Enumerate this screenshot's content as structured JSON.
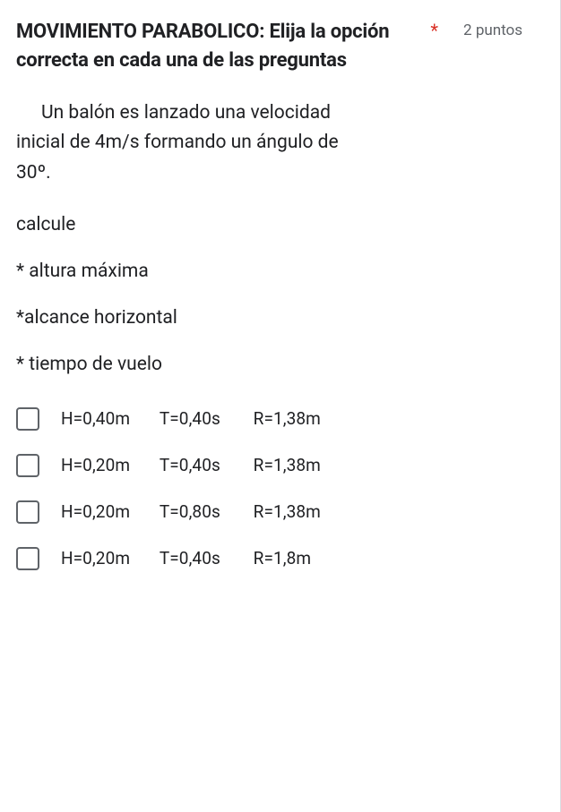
{
  "title": " MOVIMIENTO PARABOLICO: Elija la opción correcta en cada una de las preguntas",
  "required_marker": "*",
  "points_label": "2 puntos",
  "problem": {
    "line": "Un balón es lanzado una velocidad inicial de 4m/s formando un ángulo de 30º."
  },
  "calcule_label": "calcule",
  "bullets": {
    "a": "* altura máxima",
    "b": "*alcance horizontal",
    "c": "* tiempo de vuelo"
  },
  "options": [
    {
      "h": "H=0,40m",
      "t": "T=0,40s",
      "r": "R=1,38m"
    },
    {
      "h": "H=0,20m",
      "t": "T=0,40s",
      "r": "R=1,38m"
    },
    {
      "h": "H=0,20m",
      "t": "T=0,80s",
      "r": "R=1,38m"
    },
    {
      "h": "H=0,20m",
      "t": "T=0,40s",
      "r": "R=1,8m"
    }
  ],
  "colors": {
    "text": "#202124",
    "muted": "#5f6368",
    "required": "#d93025",
    "border": "#dadce0",
    "background": "#ffffff"
  }
}
